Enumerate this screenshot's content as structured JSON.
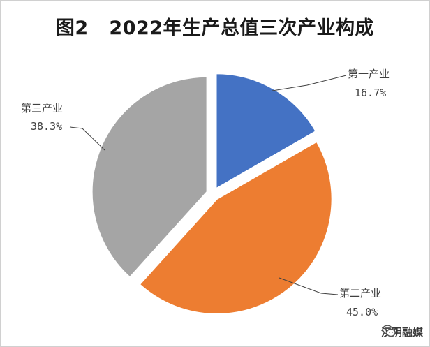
{
  "chart_data": {
    "type": "pie",
    "title": "图2   2022年生产总值三次产业构成",
    "categories": [
      "第一产业",
      "第二产业",
      "第三产业"
    ],
    "values": [
      16.7,
      45.0,
      38.3
    ],
    "value_labels": [
      "16.7%",
      "45.0%",
      "38.3%"
    ],
    "colors": [
      "#4472c4",
      "#ed7d31",
      "#a5a5a5"
    ],
    "exploded": true,
    "legend": "none"
  },
  "watermark": {
    "text": "汉阴融媒",
    "icon": "wechat-icon"
  }
}
